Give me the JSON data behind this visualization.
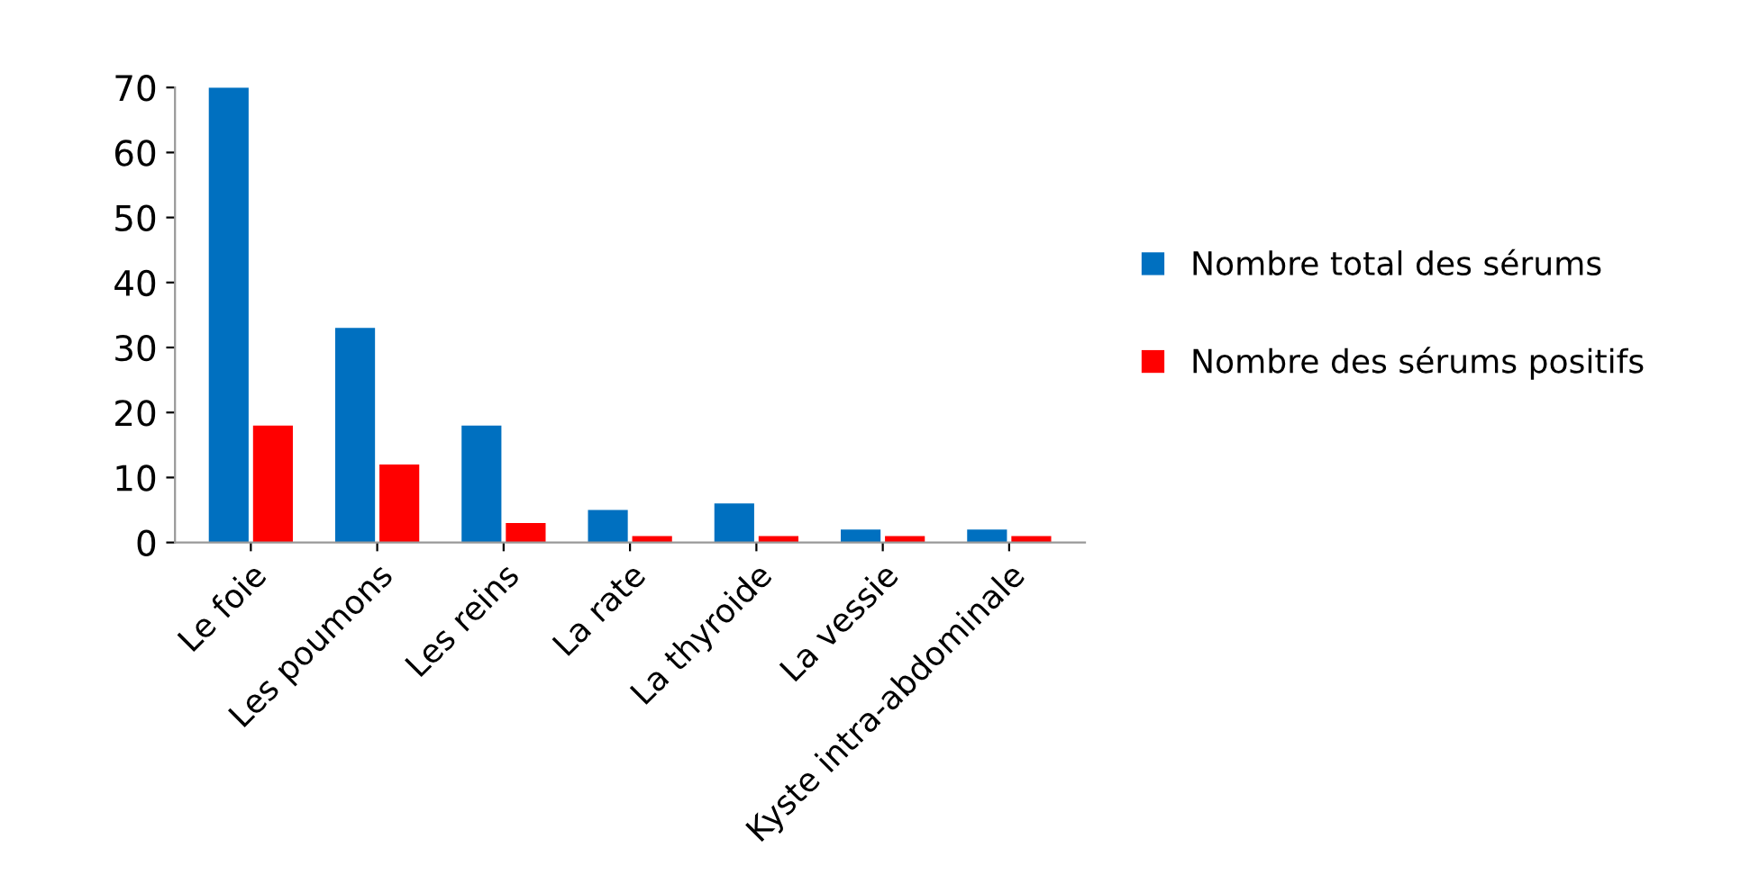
{
  "chart_data": {
    "type": "bar",
    "categories": [
      "Le foie",
      "Les poumons",
      "Les reins",
      "La rate",
      "La thyroide",
      "La vessie",
      "Kyste intra-abdominale"
    ],
    "series": [
      {
        "name": "Nombre total des sérums",
        "color": "#0070c0",
        "values": [
          70,
          33,
          18,
          5,
          6,
          2,
          2
        ]
      },
      {
        "name": "Nombre des sérums positifs",
        "color": "#ff0000",
        "values": [
          18,
          12,
          3,
          1,
          1,
          1,
          1
        ]
      }
    ],
    "ylim": [
      0,
      70
    ],
    "yticks": [
      0,
      10,
      20,
      30,
      40,
      50,
      60,
      70
    ],
    "grid": false,
    "legend": "right"
  }
}
